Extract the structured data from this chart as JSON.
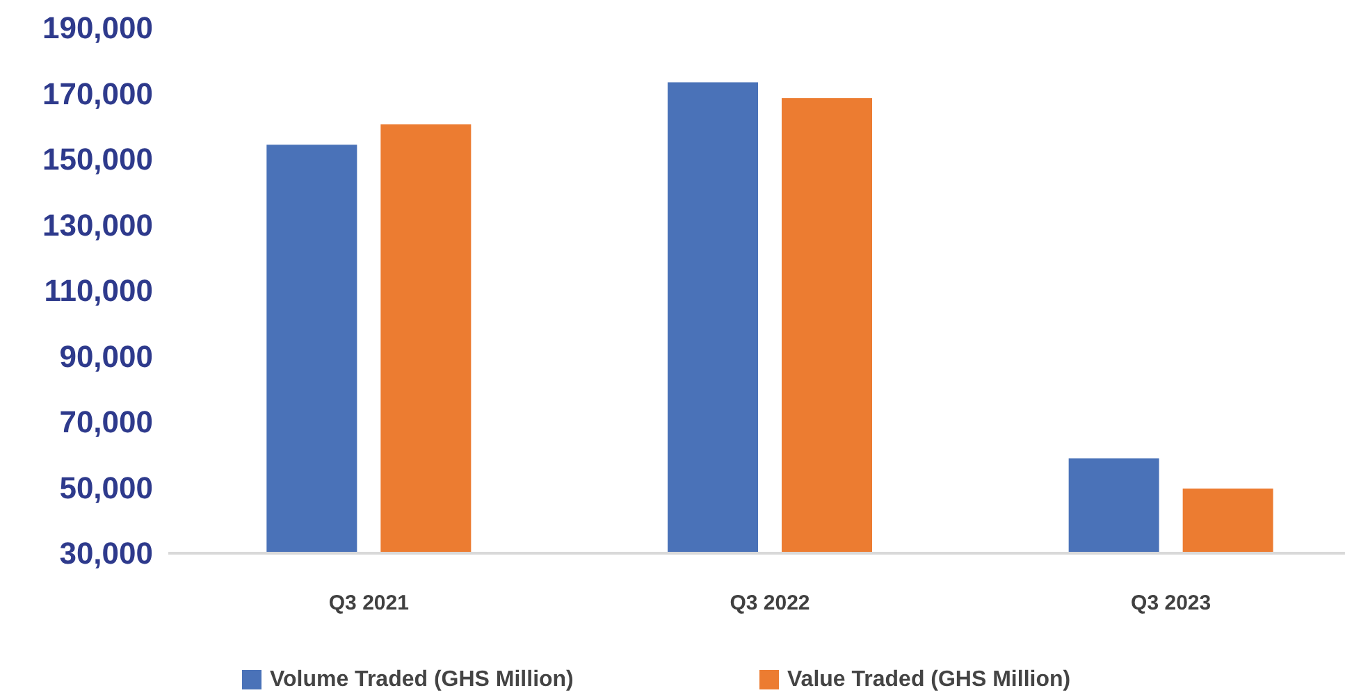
{
  "chart_data": {
    "type": "bar",
    "categories": [
      "Q3 2021",
      "Q3 2022",
      "Q3 2023"
    ],
    "series": [
      {
        "name": "Volume Traded (GHS Million)",
        "color": "#4a72b8",
        "values": [
          154400,
          173400,
          58900
        ]
      },
      {
        "name": "Value Traded (GHS Million)",
        "color": "#ec7c31",
        "values": [
          160600,
          168600,
          49700
        ]
      }
    ],
    "ylim": [
      30000,
      190000
    ],
    "yticks": [
      {
        "value": 30000,
        "label": "30,000"
      },
      {
        "value": 50000,
        "label": "50,000"
      },
      {
        "value": 70000,
        "label": "70,000"
      },
      {
        "value": 90000,
        "label": "90,000"
      },
      {
        "value": 110000,
        "label": "110,000"
      },
      {
        "value": 130000,
        "label": "130,000"
      },
      {
        "value": 150000,
        "label": "150,000"
      },
      {
        "value": 170000,
        "label": "170,000"
      },
      {
        "value": 190000,
        "label": "190,000"
      }
    ],
    "grid": false,
    "legend": "bottom"
  }
}
